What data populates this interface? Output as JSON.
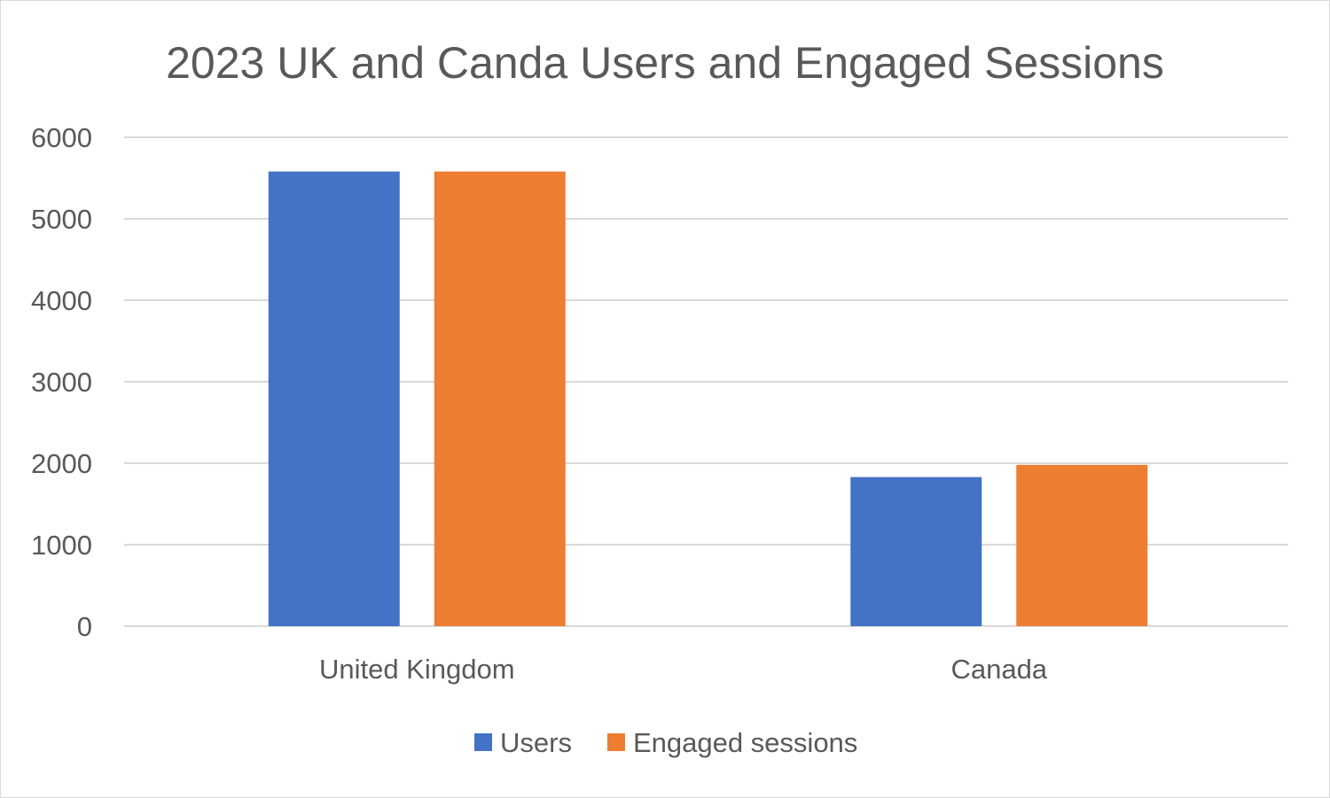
{
  "chart_data": {
    "type": "bar",
    "title": "2023 UK and Canda Users and Engaged Sessions",
    "xlabel": "",
    "ylabel": "",
    "categories": [
      "United Kingdom",
      "Canada"
    ],
    "series": [
      {
        "name": "Users",
        "color": "#4472C4",
        "values": [
          5580,
          1830
        ]
      },
      {
        "name": "Engaged sessions",
        "color": "#ED7D31",
        "values": [
          5580,
          1980
        ]
      }
    ],
    "ylim": [
      0,
      6000
    ],
    "yticks": [
      0,
      1000,
      2000,
      3000,
      4000,
      5000,
      6000
    ],
    "grid": true,
    "legend_position": "bottom"
  }
}
